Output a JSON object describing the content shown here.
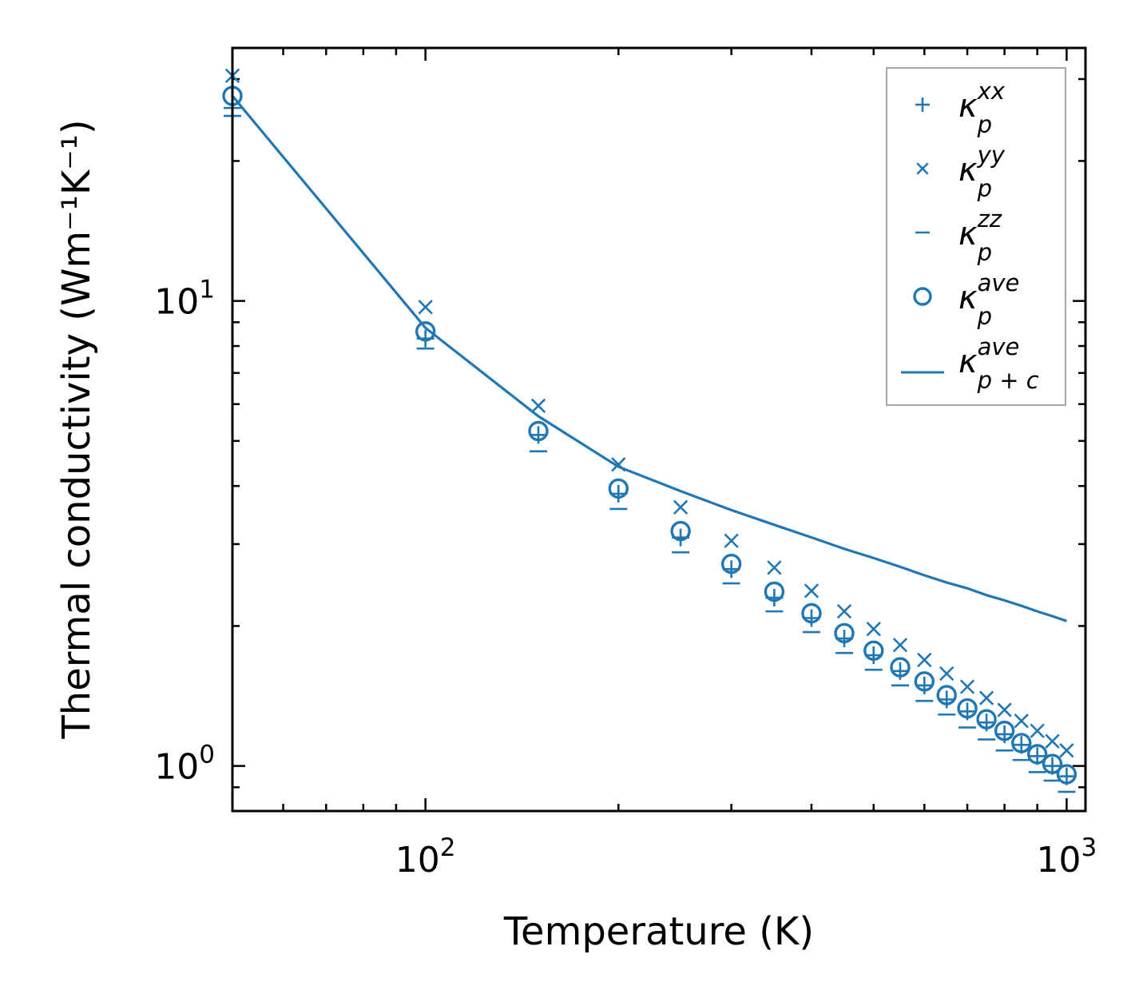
{
  "chart_data": {
    "type": "scatter",
    "title": "",
    "xlabel": "Temperature (K)",
    "ylabel": "Thermal conductivity (Wm⁻¹K⁻¹)",
    "xscale": "log",
    "yscale": "log",
    "xlim": [
      50,
      1070
    ],
    "ylim": [
      0.8,
      35
    ],
    "xticks": [
      {
        "value": 100,
        "base": "10",
        "exp": "2"
      },
      {
        "value": 1000,
        "base": "10",
        "exp": "3"
      }
    ],
    "yticks": [
      {
        "value": 1,
        "base": "10",
        "exp": "0"
      },
      {
        "value": 10,
        "base": "10",
        "exp": "1"
      }
    ],
    "legend_position": "top-right",
    "color": "#1f77b4",
    "x": [
      50,
      100,
      150,
      200,
      250,
      300,
      350,
      400,
      450,
      500,
      550,
      600,
      650,
      700,
      750,
      800,
      850,
      900,
      950,
      1000
    ],
    "series": [
      {
        "name": "κ_p^xx",
        "main": "κ",
        "sub": "p",
        "sup": "xx",
        "marker": "plus",
        "values": [
          26.0,
          8.3,
          5.15,
          3.85,
          3.1,
          2.65,
          2.3,
          2.08,
          1.88,
          1.73,
          1.6,
          1.49,
          1.39,
          1.31,
          1.24,
          1.17,
          1.11,
          1.05,
          1.0,
          0.95
        ]
      },
      {
        "name": "κ_p^yy",
        "main": "κ",
        "sub": "p",
        "sup": "yy",
        "marker": "x",
        "values": [
          30.5,
          9.7,
          5.95,
          4.45,
          3.6,
          3.05,
          2.67,
          2.38,
          2.15,
          1.97,
          1.82,
          1.69,
          1.58,
          1.48,
          1.4,
          1.32,
          1.25,
          1.19,
          1.13,
          1.08
        ]
      },
      {
        "name": "κ_p^zz",
        "main": "κ",
        "sub": "p",
        "sup": "zz",
        "marker": "hline",
        "values": [
          25.0,
          7.9,
          4.75,
          3.57,
          2.88,
          2.47,
          2.15,
          1.94,
          1.75,
          1.61,
          1.49,
          1.38,
          1.29,
          1.21,
          1.14,
          1.08,
          1.03,
          0.97,
          0.93,
          0.88
        ]
      },
      {
        "name": "κ_p^ave",
        "main": "κ",
        "sub": "p",
        "sup": "ave",
        "marker": "circle",
        "values": [
          27.6,
          8.6,
          5.25,
          3.95,
          3.2,
          2.72,
          2.37,
          2.13,
          1.93,
          1.77,
          1.63,
          1.52,
          1.42,
          1.33,
          1.26,
          1.19,
          1.12,
          1.06,
          1.01,
          0.96
        ]
      },
      {
        "name": "κ_p+c^ave",
        "main": "κ",
        "sub": "p + c",
        "sup": "ave",
        "marker": "line",
        "values": [
          27.6,
          8.75,
          5.65,
          4.4,
          3.9,
          3.55,
          3.3,
          3.1,
          2.93,
          2.8,
          2.68,
          2.57,
          2.48,
          2.41,
          2.33,
          2.27,
          2.21,
          2.15,
          2.1,
          2.05
        ]
      }
    ]
  }
}
